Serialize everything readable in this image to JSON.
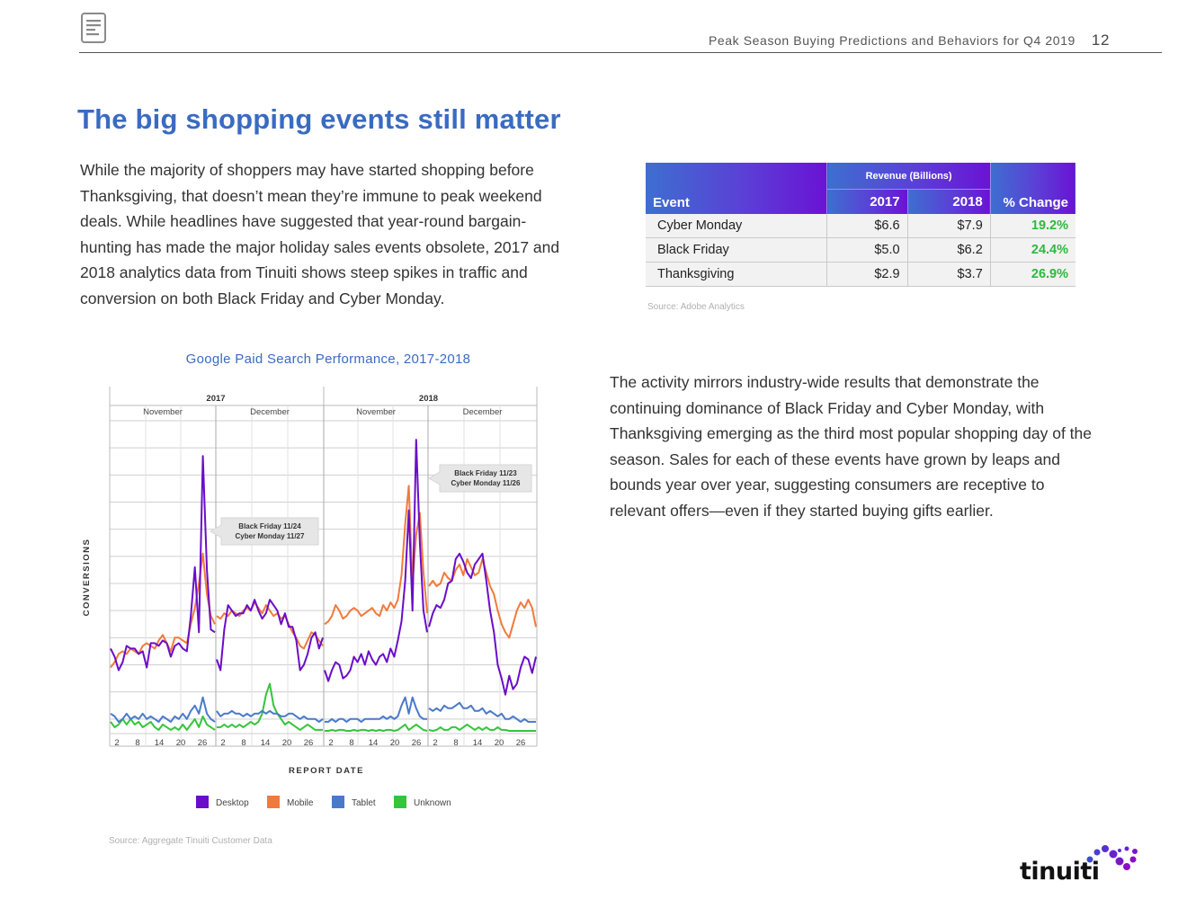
{
  "header": {
    "title": "Peak Season Buying Predictions and Behaviors for Q4 2019",
    "page_number": "12",
    "icon": "document-icon"
  },
  "page_title": "The big shopping events still matter",
  "intro_paragraph": "While the majority of shoppers may have started shopping before Thanksgiving, that doesn’t mean they’re immune to peak weekend deals. While headlines have suggested that year-round bargain-hunting has made the major holiday sales events obsolete, 2017 and 2018 analytics data from Tinuiti shows steep spikes in traffic and conversion on both Black Friday and Cyber Monday.",
  "revenue_table": {
    "group_header": "Revenue (Billions)",
    "headers": [
      "Event",
      "2017",
      "2018",
      "% Change"
    ],
    "rows": [
      {
        "event": "Cyber Monday",
        "y2017": "$6.6",
        "y2018": "$7.9",
        "change": "19.2%"
      },
      {
        "event": "Black Friday",
        "y2017": "$5.0",
        "y2018": "$6.2",
        "change": "24.4%"
      },
      {
        "event": "Thanksgiving",
        "y2017": "$2.9",
        "y2018": "$3.7",
        "change": "26.9%"
      }
    ],
    "source": "Source: Adobe Analytics",
    "header_gradient": [
      "#3d6fd0",
      "#6a13d4"
    ],
    "positive_color": "#2fb83f"
  },
  "second_paragraph": "The activity mirrors industry-wide results that demonstrate the continuing dominance of Black Friday and Cyber Monday, with Thanksgiving emerging as the third most popular shopping day of the season. Sales for each of these events have grown by leaps and bounds year over year, suggesting consumers are receptive to relevant offers—even if they started buying gifts earlier.",
  "chart_data": {
    "type": "line",
    "title": "Google Paid Search Performance, 2017-2018",
    "xlabel": "REPORT DATE",
    "ylabel": "CONVERSIONS",
    "year_labels": [
      "2017",
      "2018"
    ],
    "month_labels": [
      "November",
      "December",
      "November",
      "December"
    ],
    "x_tick_labels": [
      "2",
      "8",
      "14",
      "20",
      "26",
      "2",
      "8",
      "14",
      "20",
      "26",
      "2",
      "8",
      "14",
      "20",
      "26",
      "2",
      "8",
      "14",
      "20",
      "26"
    ],
    "annotations": [
      {
        "line1": "Black Friday 11/24",
        "line2": "Cyber Monday 11/27"
      },
      {
        "line1": "Black Friday 11/23",
        "line2": "Cyber Monday 11/26"
      }
    ],
    "legend": [
      {
        "name": "Desktop",
        "color": "#6a0dc9"
      },
      {
        "name": "Mobile",
        "color": "#f07a3c"
      },
      {
        "name": "Tablet",
        "color": "#4a79c8"
      },
      {
        "name": "Unknown",
        "color": "#36c43c"
      }
    ],
    "legend_position": "bottom",
    "grid": true,
    "ylim": [
      0,
      12
    ],
    "panels": [
      {
        "series": {
          "Desktop": [
            3.6,
            3.3,
            2.8,
            3.1,
            3.7,
            3.6,
            3.6,
            3.4,
            3.5,
            2.9,
            3.8,
            3.8,
            3.7,
            3.9,
            3.8,
            3.3,
            3.7,
            3.8,
            3.6,
            3.5,
            4.8,
            6.6,
            4.2,
            10.7,
            6.5,
            4.3,
            4.2
          ],
          "Mobile": [
            2.9,
            3.1,
            3.4,
            3.5,
            3.4,
            3.6,
            3.5,
            3.4,
            3.7,
            3.8,
            3.7,
            3.6,
            3.9,
            4.1,
            3.8,
            3.5,
            4.0,
            4.0,
            3.9,
            3.8,
            4.5,
            5.1,
            6.0,
            7.1,
            5.6,
            4.8,
            4.5
          ],
          "Tablet": [
            1.2,
            1.1,
            0.9,
            1.0,
            1.2,
            1.0,
            1.1,
            1.0,
            1.2,
            1.0,
            1.1,
            1.0,
            0.9,
            1.1,
            1.0,
            0.9,
            1.1,
            1.0,
            1.2,
            1.0,
            1.3,
            1.5,
            1.2,
            1.8,
            1.2,
            1.0,
            0.9
          ],
          "Unknown": [
            0.9,
            0.7,
            0.8,
            1.0,
            0.8,
            1.0,
            0.8,
            0.9,
            0.7,
            0.8,
            0.9,
            0.7,
            0.6,
            0.8,
            0.7,
            0.6,
            0.7,
            0.6,
            0.8,
            0.6,
            0.8,
            1.0,
            0.7,
            1.1,
            0.8,
            0.7,
            0.6
          ]
        }
      },
      {
        "series": {
          "Desktop": [
            3.2,
            2.8,
            4.3,
            5.2,
            5.0,
            4.8,
            4.9,
            4.9,
            5.2,
            5.0,
            5.4,
            5.0,
            4.7,
            4.9,
            5.4,
            5.2,
            5.0,
            4.5,
            4.9,
            4.4,
            4.4,
            3.9,
            2.8,
            3.0,
            3.4,
            4.0,
            4.2,
            3.6,
            4.0
          ],
          "Mobile": [
            4.8,
            4.7,
            4.9,
            4.8,
            5.0,
            4.9,
            4.8,
            5.0,
            5.1,
            5.0,
            5.3,
            5.1,
            4.9,
            5.2,
            5.0,
            4.8,
            4.9,
            4.7,
            4.8,
            4.5,
            4.2,
            4.0,
            3.7,
            3.6,
            3.9,
            4.2,
            4.1,
            3.9,
            3.7
          ],
          "Tablet": [
            1.3,
            1.1,
            1.2,
            1.2,
            1.3,
            1.2,
            1.2,
            1.1,
            1.2,
            1.1,
            1.2,
            1.2,
            1.3,
            1.2,
            1.3,
            1.2,
            1.2,
            1.1,
            1.1,
            1.2,
            1.2,
            1.1,
            1.0,
            1.1,
            1.0,
            1.0,
            1.0,
            0.9,
            1.0
          ],
          "Unknown": [
            0.7,
            0.7,
            0.8,
            0.7,
            0.8,
            0.7,
            0.8,
            0.7,
            0.8,
            0.9,
            0.8,
            0.9,
            1.2,
            1.9,
            2.3,
            1.5,
            1.2,
            1.0,
            0.8,
            0.9,
            0.8,
            0.7,
            0.6,
            0.7,
            0.8,
            0.7,
            0.6,
            0.6,
            0.6
          ]
        }
      },
      {
        "series": {
          "Desktop": [
            2.8,
            2.4,
            2.8,
            3.1,
            3.0,
            2.5,
            2.6,
            2.8,
            3.3,
            3.1,
            3.4,
            3.0,
            3.5,
            3.2,
            3.0,
            3.3,
            3.4,
            3.1,
            3.6,
            3.3,
            3.9,
            4.6,
            6.1,
            8.7,
            5.0,
            11.3,
            7.5,
            5.0,
            4.2
          ],
          "Mobile": [
            4.5,
            4.6,
            4.8,
            5.2,
            5.0,
            4.7,
            4.8,
            5.0,
            5.1,
            5.0,
            4.8,
            4.9,
            5.0,
            5.1,
            4.9,
            4.8,
            5.2,
            5.0,
            5.3,
            5.1,
            5.4,
            6.3,
            8.2,
            9.6,
            6.0,
            7.8,
            8.6,
            6.4,
            4.9
          ],
          "Tablet": [
            0.9,
            0.9,
            1.0,
            0.9,
            1.0,
            1.0,
            0.9,
            1.0,
            1.0,
            1.0,
            0.9,
            1.0,
            1.0,
            1.0,
            1.0,
            1.0,
            1.1,
            1.0,
            1.1,
            1.0,
            1.1,
            1.5,
            1.8,
            1.2,
            1.8,
            1.4,
            1.1,
            1.0,
            1.0
          ],
          "Unknown": [
            0.5,
            0.5,
            0.6,
            0.5,
            0.6,
            0.6,
            0.5,
            0.5,
            0.6,
            0.5,
            0.6,
            0.6,
            0.5,
            0.6,
            0.5,
            0.6,
            0.5,
            0.6,
            0.6,
            0.5,
            0.6,
            0.7,
            0.8,
            0.6,
            0.7,
            0.8,
            0.7,
            0.6,
            0.5
          ]
        }
      },
      {
        "series": {
          "Desktop": [
            4.4,
            4.9,
            5.2,
            5.1,
            5.4,
            6.0,
            6.1,
            6.9,
            7.1,
            6.8,
            6.4,
            6.2,
            6.7,
            6.9,
            7.1,
            6.1,
            5.0,
            4.2,
            3.0,
            2.5,
            1.9,
            2.6,
            2.1,
            2.3,
            2.9,
            3.3,
            3.2,
            2.7,
            3.3
          ],
          "Mobile": [
            5.9,
            6.1,
            5.9,
            6.0,
            6.4,
            6.2,
            6.1,
            6.5,
            6.7,
            6.3,
            6.9,
            6.6,
            6.3,
            6.4,
            6.9,
            6.4,
            5.9,
            5.6,
            5.0,
            4.5,
            4.2,
            4.0,
            4.5,
            5.0,
            5.3,
            5.1,
            5.4,
            5.1,
            4.4
          ],
          "Tablet": [
            1.4,
            1.3,
            1.4,
            1.3,
            1.5,
            1.4,
            1.4,
            1.5,
            1.6,
            1.4,
            1.4,
            1.5,
            1.3,
            1.3,
            1.4,
            1.2,
            1.3,
            1.2,
            1.1,
            1.2,
            1.0,
            1.0,
            1.1,
            1.0,
            0.9,
            1.0,
            0.9,
            0.9,
            0.9
          ],
          "Unknown": [
            0.6,
            0.5,
            0.6,
            0.7,
            0.6,
            0.6,
            0.7,
            0.7,
            0.6,
            0.7,
            0.8,
            0.7,
            0.6,
            0.7,
            0.6,
            0.7,
            0.6,
            0.6,
            0.7,
            0.6,
            0.6,
            0.5,
            0.5,
            0.5,
            0.4,
            0.4,
            0.5,
            0.4,
            0.4
          ]
        }
      }
    ],
    "source": "Source: Aggregate Tinuiti Customer Data"
  },
  "logo": {
    "text": "tinuiti"
  }
}
